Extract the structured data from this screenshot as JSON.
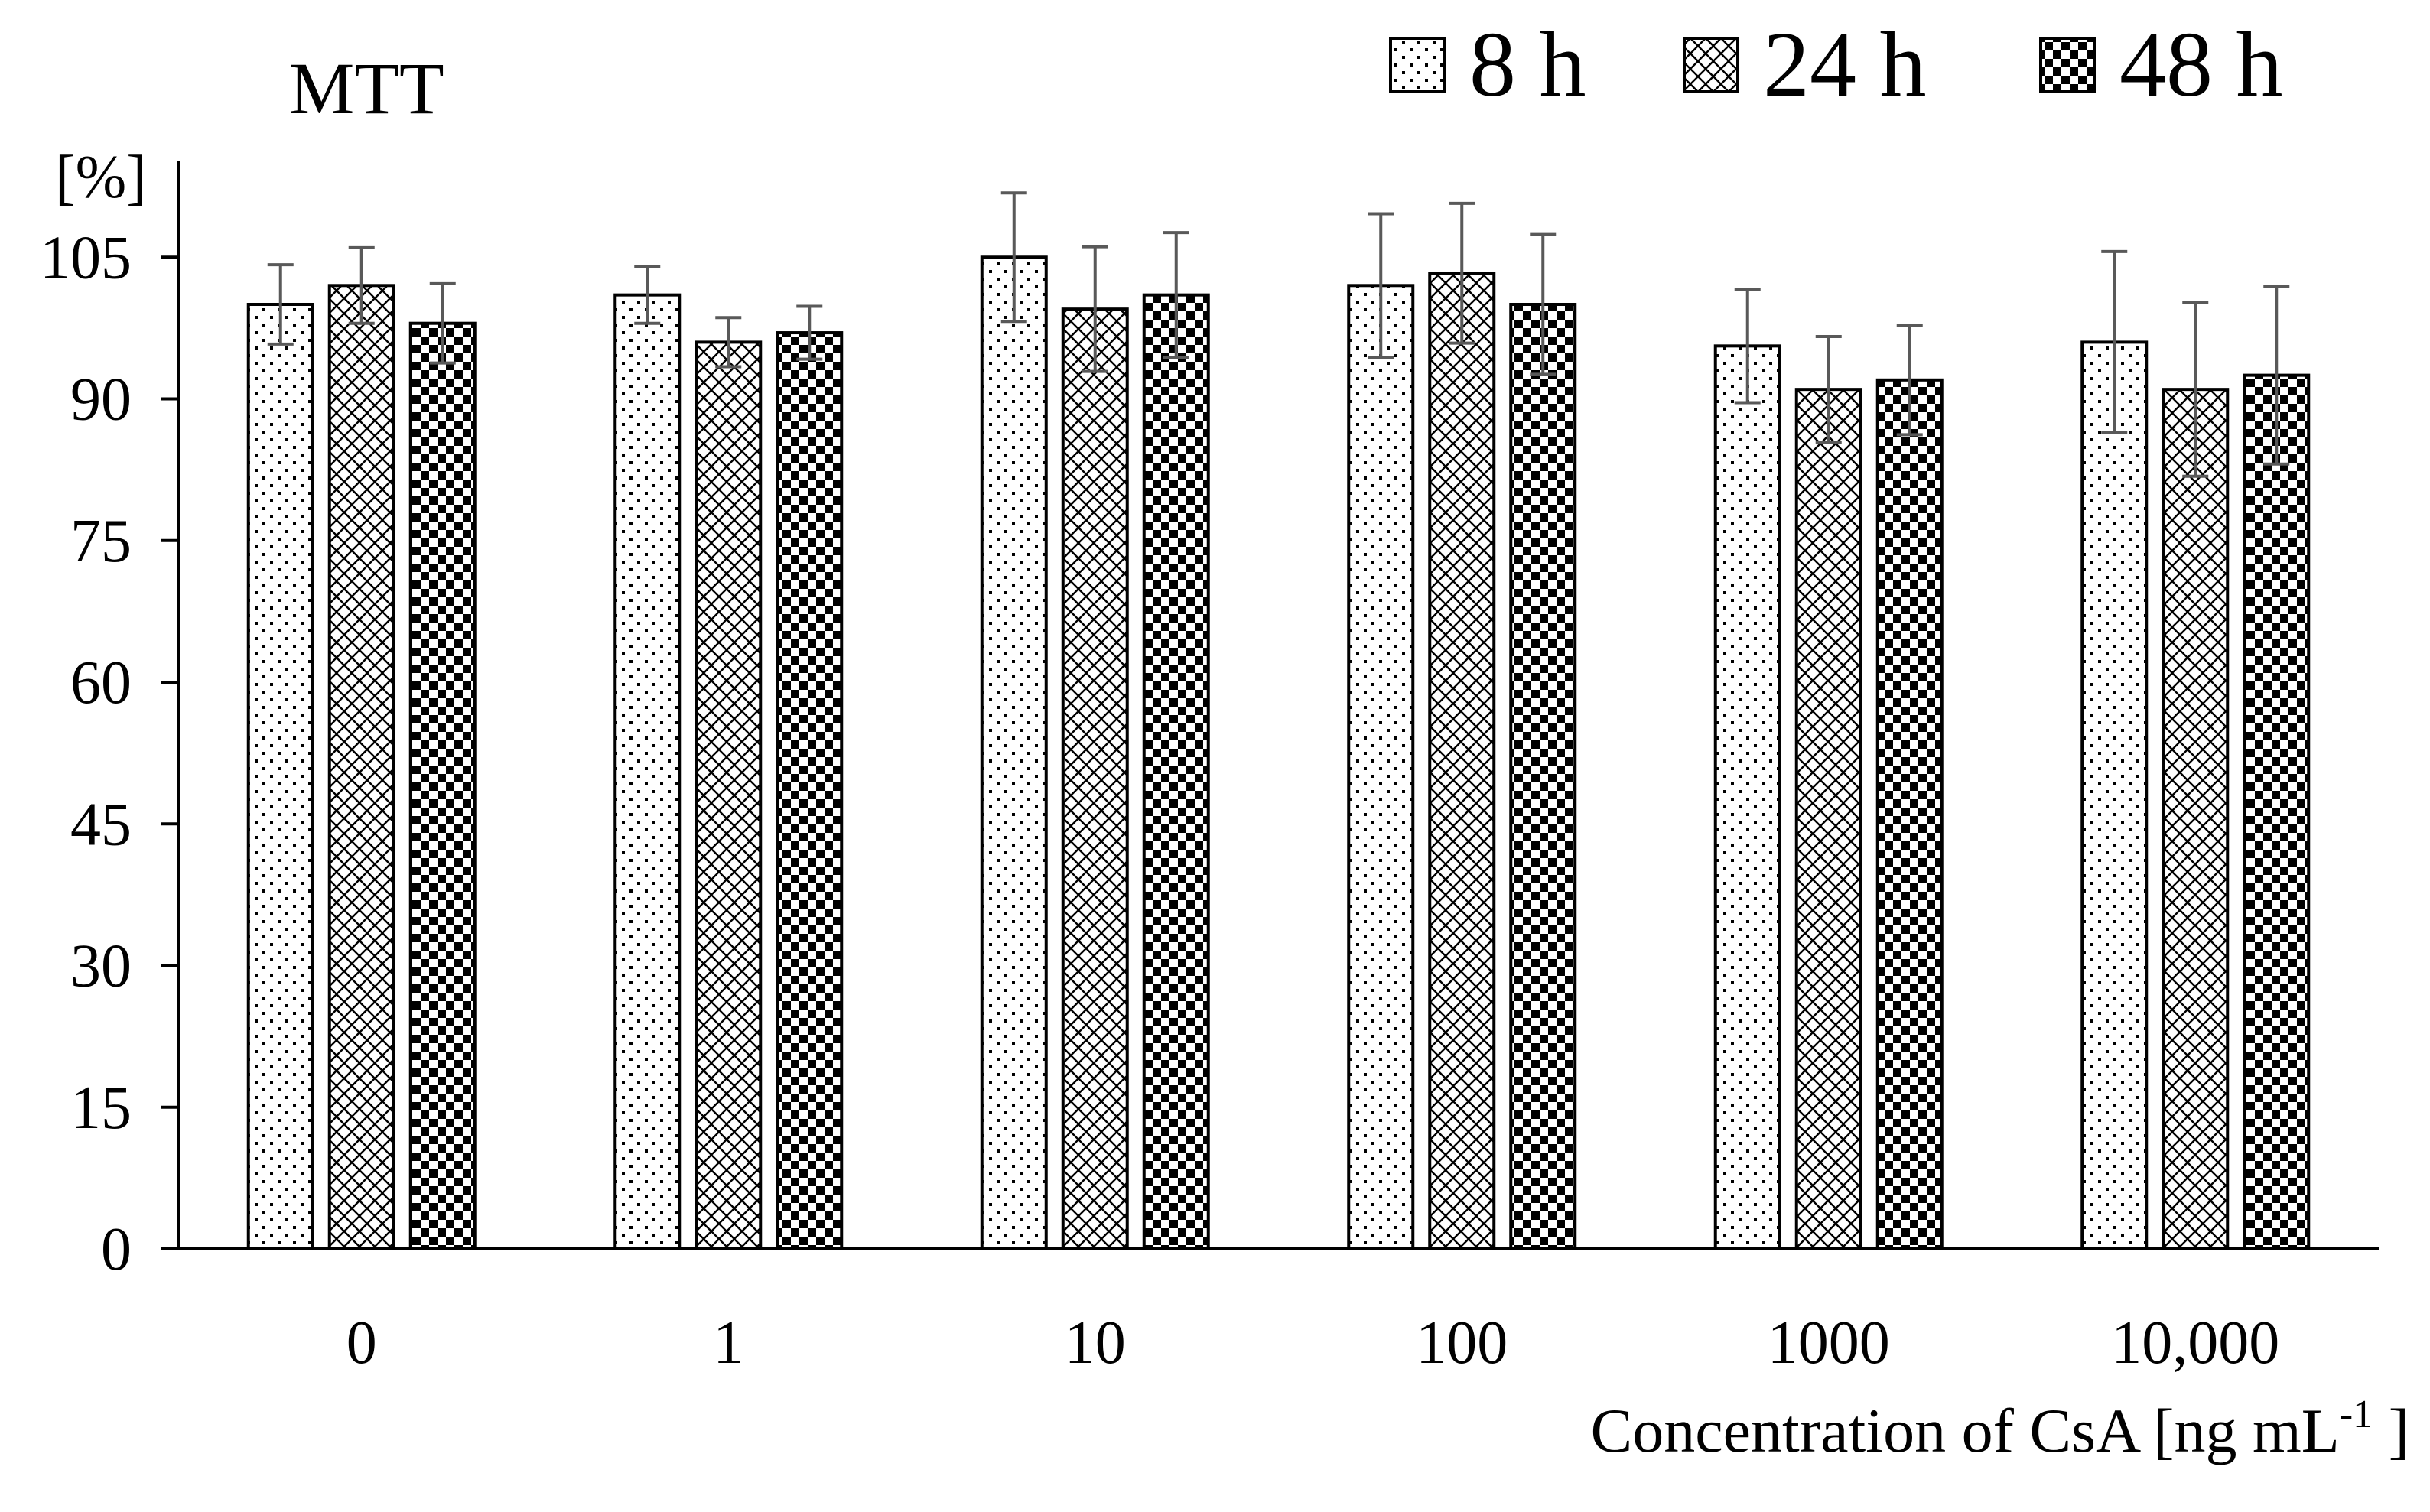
{
  "chart_data": {
    "type": "bar",
    "title": "MTT",
    "ylabel": "[%]",
    "xlabel": {
      "main": "Concentration of CsA  [ng mL",
      "sup": "-1",
      "end": " ]"
    },
    "ylim": [
      0,
      115
    ],
    "yticks": [
      0,
      15,
      30,
      45,
      60,
      75,
      90,
      105
    ],
    "grid": false,
    "legend_position": "top-right",
    "categories": [
      "0",
      "1",
      "10",
      "100",
      "1000",
      "10,000"
    ],
    "series": [
      {
        "name": "8 h",
        "pattern": "dots",
        "values": [
          100,
          101,
          105,
          102,
          95.6,
          96
        ],
        "errors": [
          4.2,
          3.0,
          6.8,
          7.6,
          6.0,
          9.6
        ]
      },
      {
        "name": "24 h",
        "pattern": "crosshatch",
        "values": [
          102,
          96,
          99.5,
          103.3,
          91,
          91
        ],
        "errors": [
          4.0,
          2.6,
          6.6,
          7.4,
          5.6,
          9.2
        ]
      },
      {
        "name": "48 h",
        "pattern": "checker",
        "values": [
          98,
          97,
          101,
          100,
          92,
          92.5
        ],
        "errors": [
          4.2,
          2.8,
          6.6,
          7.4,
          5.8,
          9.4
        ]
      }
    ],
    "colors": {
      "axis": "#000000",
      "bar_outline": "#000000",
      "bar_fill": "#ffffff",
      "pattern": "#000000",
      "error_bar": "#595959"
    }
  }
}
